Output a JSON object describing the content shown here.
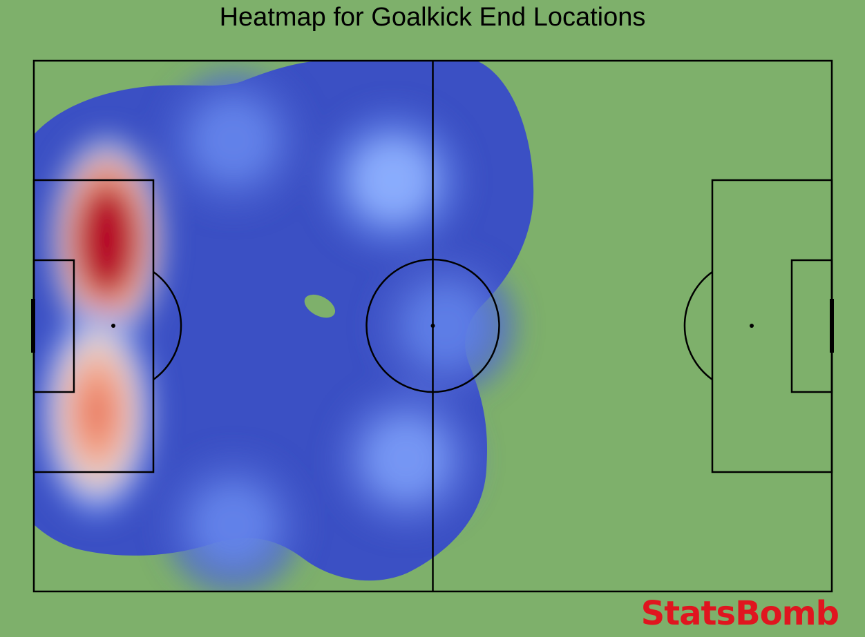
{
  "chart_data": {
    "type": "heatmap",
    "title": "Heatmap for Goalkick End Locations",
    "pitch": {
      "length": 120,
      "width": 80,
      "orientation": "horizontal",
      "lines_color": "#000000",
      "pitch_color": "#7eb06b"
    },
    "colormap": "coolwarm",
    "density_hotspots": [
      {
        "x": 11,
        "y": 27,
        "intensity": 1.0
      },
      {
        "x": 9.5,
        "y": 53,
        "intensity": 0.72
      },
      {
        "x": 54,
        "y": 18,
        "intensity": 0.38
      },
      {
        "x": 56,
        "y": 60,
        "intensity": 0.3
      },
      {
        "x": 30,
        "y": 12,
        "intensity": 0.22
      },
      {
        "x": 30,
        "y": 70,
        "intensity": 0.22
      },
      {
        "x": 62,
        "y": 40,
        "intensity": 0.2
      }
    ],
    "low_density_gap": {
      "x": 43,
      "y": 37
    }
  },
  "brand": {
    "text": "StatsBomb",
    "color": "#e0151f"
  }
}
